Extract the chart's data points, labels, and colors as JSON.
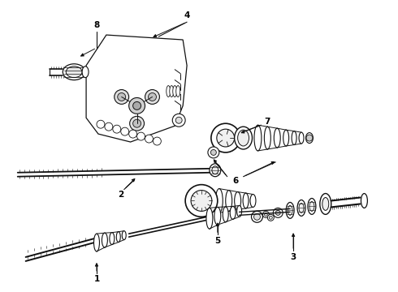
{
  "bg_color": "#ffffff",
  "line_color": "#111111",
  "fig_width": 4.9,
  "fig_height": 3.6,
  "dpi": 100,
  "label_fs": 7.5,
  "label_color": "#000000"
}
